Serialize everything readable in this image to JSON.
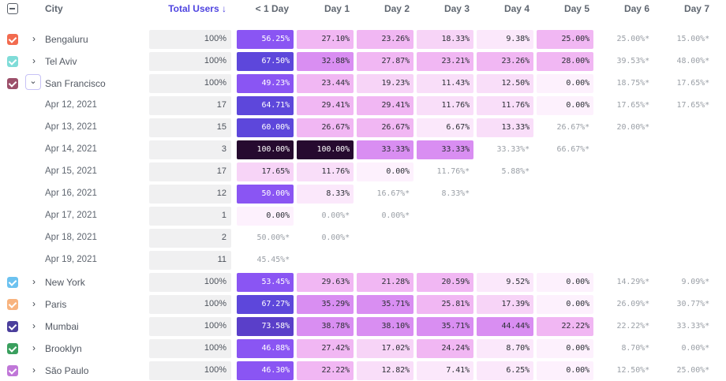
{
  "header": {
    "city": "City",
    "total_users": "Total Users ↓",
    "cols": [
      "< 1 Day",
      "Day 1",
      "Day 2",
      "Day 3",
      "Day 4",
      "Day 5",
      "Day 6",
      "Day 7"
    ]
  },
  "chevron_collapsed": "›",
  "chevron_expanded": "⌄",
  "rows": [
    {
      "type": "city",
      "label": "Bengaluru",
      "color": "#f26b4f",
      "total": "100%",
      "cells": [
        "56.25%",
        "27.10%",
        "23.26%",
        "18.33%",
        "9.38%",
        "25.00%",
        "25.00%*",
        "15.00%*"
      ]
    },
    {
      "type": "city",
      "label": "Tel Aviv",
      "color": "#7fdcd8",
      "total": "100%",
      "cells": [
        "67.50%",
        "32.88%",
        "27.87%",
        "23.21%",
        "23.26%",
        "28.00%",
        "39.53%*",
        "48.00%*"
      ]
    },
    {
      "type": "city",
      "label": "San Francisco",
      "color": "#9c4f6a",
      "expanded": true,
      "total": "100%",
      "cells": [
        "49.23%",
        "23.44%",
        "19.23%",
        "11.43%",
        "12.50%",
        "0.00%",
        "18.75%*",
        "17.65%*"
      ]
    },
    {
      "type": "date",
      "label": "Apr 12, 2021",
      "total": "17",
      "cells": [
        "64.71%",
        "29.41%",
        "29.41%",
        "11.76%",
        "11.76%",
        "0.00%",
        "17.65%*",
        "17.65%*"
      ]
    },
    {
      "type": "date",
      "label": "Apr 13, 2021",
      "total": "15",
      "cells": [
        "60.00%",
        "26.67%",
        "26.67%",
        "6.67%",
        "13.33%",
        "26.67%*",
        "20.00%*",
        ""
      ]
    },
    {
      "type": "date",
      "label": "Apr 14, 2021",
      "total": "3",
      "cells": [
        "100.00%",
        "100.00%",
        "33.33%",
        "33.33%",
        "33.33%*",
        "66.67%*",
        "",
        ""
      ]
    },
    {
      "type": "date",
      "label": "Apr 15, 2021",
      "total": "17",
      "cells": [
        "17.65%",
        "11.76%",
        "0.00%",
        "11.76%*",
        "5.88%*",
        "",
        "",
        ""
      ]
    },
    {
      "type": "date",
      "label": "Apr 16, 2021",
      "total": "12",
      "cells": [
        "50.00%",
        "8.33%",
        "16.67%*",
        "8.33%*",
        "",
        "",
        "",
        ""
      ]
    },
    {
      "type": "date",
      "label": "Apr 17, 2021",
      "total": "1",
      "cells": [
        "0.00%",
        "0.00%*",
        "0.00%*",
        "",
        "",
        "",
        "",
        ""
      ]
    },
    {
      "type": "date",
      "label": "Apr 18, 2021",
      "total": "2",
      "cells": [
        "50.00%*",
        "0.00%*",
        "",
        "",
        "",
        "",
        "",
        ""
      ]
    },
    {
      "type": "date",
      "label": "Apr 19, 2021",
      "total": "11",
      "cells": [
        "45.45%*",
        "",
        "",
        "",
        "",
        "",
        "",
        ""
      ]
    },
    {
      "type": "city",
      "label": "New York",
      "color": "#6cc2f0",
      "total": "100%",
      "cells": [
        "53.45%",
        "29.63%",
        "21.28%",
        "20.59%",
        "9.52%",
        "0.00%",
        "14.29%*",
        "9.09%*"
      ]
    },
    {
      "type": "city",
      "label": "Paris",
      "color": "#f8b37e",
      "total": "100%",
      "cells": [
        "67.27%",
        "35.29%",
        "35.71%",
        "25.81%",
        "17.39%",
        "0.00%",
        "26.09%*",
        "30.77%*"
      ]
    },
    {
      "type": "city",
      "label": "Mumbai",
      "color": "#4b3f9c",
      "total": "100%",
      "cells": [
        "73.58%",
        "38.78%",
        "38.10%",
        "35.71%",
        "44.44%",
        "22.22%",
        "22.22%*",
        "33.33%*"
      ]
    },
    {
      "type": "city",
      "label": "Brooklyn",
      "color": "#3a9f5e",
      "total": "100%",
      "cells": [
        "46.88%",
        "27.42%",
        "17.02%",
        "24.24%",
        "8.70%",
        "0.00%",
        "8.70%*",
        "0.00%*"
      ]
    },
    {
      "type": "city",
      "label": "São Paulo",
      "color": "#c077d8",
      "total": "100%",
      "cells": [
        "46.30%",
        "22.22%",
        "12.82%",
        "7.41%",
        "6.25%",
        "0.00%",
        "12.50%*",
        "25.00%*"
      ]
    }
  ]
}
